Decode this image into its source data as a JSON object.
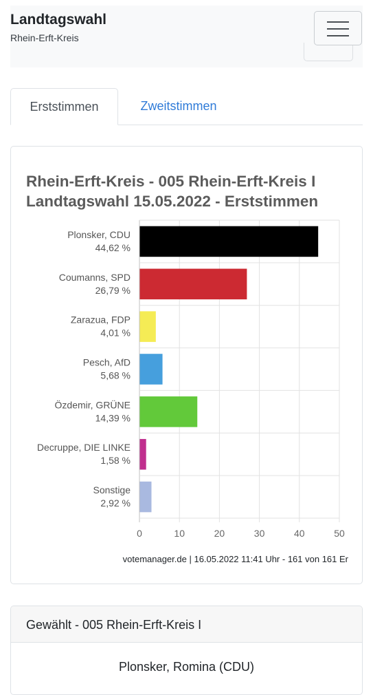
{
  "header": {
    "title": "Landtagswahl",
    "subtitle": "Rhein-Erft-Kreis"
  },
  "tabs": [
    {
      "label": "Erststimmen",
      "active": true
    },
    {
      "label": "Zweitstimmen",
      "active": false
    }
  ],
  "chart_card": {
    "title_line1": "Rhein-Erft-Kreis - 005 Rhein-Erft-Kreis I",
    "title_line2": "Landtagswahl 15.05.2022  - Erststimmen",
    "source": "votemanager.de | 16.05.2022 11:41 Uhr - 161 von 161 Er"
  },
  "chart_data": {
    "type": "bar",
    "orientation": "horizontal",
    "categories": [
      "Plonsker, CDU",
      "Coumanns, SPD",
      "Zarazua, FDP",
      "Pesch, AfD",
      "Özdemir, GRÜNE",
      "Decruppe, DIE LINKE",
      "Sonstige"
    ],
    "value_labels": [
      "44,62 %",
      "26,79 %",
      "4,01 %",
      "5,68 %",
      "14,39 %",
      "1,58 %",
      "2,92 %"
    ],
    "values": [
      44.62,
      26.79,
      4.01,
      5.68,
      14.39,
      1.58,
      2.92
    ],
    "colors": [
      "#000000",
      "#cc2a32",
      "#f5ec55",
      "#469fdd",
      "#62c93a",
      "#c02f8e",
      "#a9b9e0"
    ],
    "xlim": [
      0,
      50
    ],
    "xticks": [
      "0",
      "10",
      "20",
      "30",
      "40",
      "50"
    ],
    "grid": true
  },
  "result_card": {
    "heading": "Gewählt - 005 Rhein-Erft-Kreis I",
    "winner": "Plonsker, Romina (CDU)"
  }
}
